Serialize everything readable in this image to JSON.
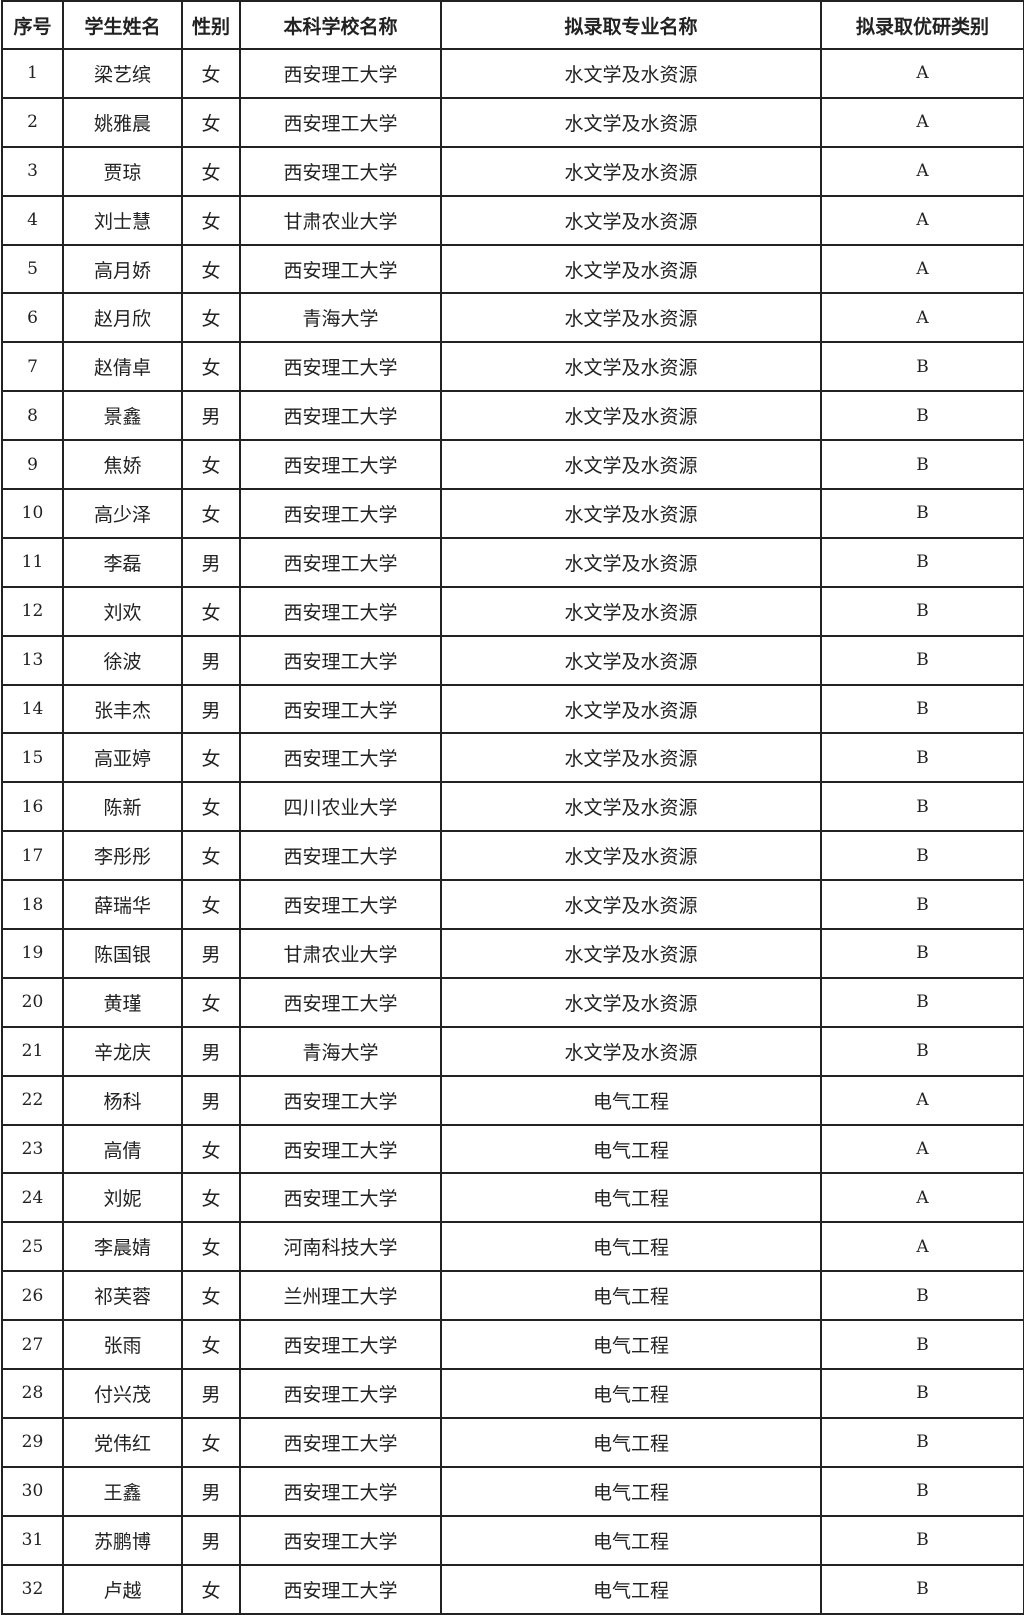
{
  "headers": [
    "序号",
    "学生姓名",
    "性别",
    "本科学校名称",
    "拟录取专业名称",
    "拟录取优研类别"
  ],
  "rows": [
    [
      "1",
      "梁艺缤",
      "女",
      "西安理工大学",
      "水文学及水资源",
      "A"
    ],
    [
      "2",
      "姚雅晨",
      "女",
      "西安理工大学",
      "水文学及水资源",
      "A"
    ],
    [
      "3",
      "贾琼",
      "女",
      "西安理工大学",
      "水文学及水资源",
      "A"
    ],
    [
      "4",
      "刘士慧",
      "女",
      "甘肃农业大学",
      "水文学及水资源",
      "A"
    ],
    [
      "5",
      "高月娇",
      "女",
      "西安理工大学",
      "水文学及水资源",
      "A"
    ],
    [
      "6",
      "赵月欣",
      "女",
      "青海大学",
      "水文学及水资源",
      "A"
    ],
    [
      "7",
      "赵倩卓",
      "女",
      "西安理工大学",
      "水文学及水资源",
      "B"
    ],
    [
      "8",
      "景鑫",
      "男",
      "西安理工大学",
      "水文学及水资源",
      "B"
    ],
    [
      "9",
      "焦娇",
      "女",
      "西安理工大学",
      "水文学及水资源",
      "B"
    ],
    [
      "10",
      "高少泽",
      "女",
      "西安理工大学",
      "水文学及水资源",
      "B"
    ],
    [
      "11",
      "李磊",
      "男",
      "西安理工大学",
      "水文学及水资源",
      "B"
    ],
    [
      "12",
      "刘欢",
      "女",
      "西安理工大学",
      "水文学及水资源",
      "B"
    ],
    [
      "13",
      "徐波",
      "男",
      "西安理工大学",
      "水文学及水资源",
      "B"
    ],
    [
      "14",
      "张丰杰",
      "男",
      "西安理工大学",
      "水文学及水资源",
      "B"
    ],
    [
      "15",
      "高亚婷",
      "女",
      "西安理工大学",
      "水文学及水资源",
      "B"
    ],
    [
      "16",
      "陈新",
      "女",
      "四川农业大学",
      "水文学及水资源",
      "B"
    ],
    [
      "17",
      "李彤彤",
      "女",
      "西安理工大学",
      "水文学及水资源",
      "B"
    ],
    [
      "18",
      "薛瑞华",
      "女",
      "西安理工大学",
      "水文学及水资源",
      "B"
    ],
    [
      "19",
      "陈国银",
      "男",
      "甘肃农业大学",
      "水文学及水资源",
      "B"
    ],
    [
      "20",
      "黄瑾",
      "女",
      "西安理工大学",
      "水文学及水资源",
      "B"
    ],
    [
      "21",
      "辛龙庆",
      "男",
      "青海大学",
      "水文学及水资源",
      "B"
    ],
    [
      "22",
      "杨科",
      "男",
      "西安理工大学",
      "电气工程",
      "A"
    ],
    [
      "23",
      "高倩",
      "女",
      "西安理工大学",
      "电气工程",
      "A"
    ],
    [
      "24",
      "刘妮",
      "女",
      "西安理工大学",
      "电气工程",
      "A"
    ],
    [
      "25",
      "李晨婧",
      "女",
      "河南科技大学",
      "电气工程",
      "A"
    ],
    [
      "26",
      "祁芙蓉",
      "女",
      "兰州理工大学",
      "电气工程",
      "B"
    ],
    [
      "27",
      "张雨",
      "女",
      "西安理工大学",
      "电气工程",
      "B"
    ],
    [
      "28",
      "付兴茂",
      "男",
      "西安理工大学",
      "电气工程",
      "B"
    ],
    [
      "29",
      "党伟红",
      "女",
      "西安理工大学",
      "电气工程",
      "B"
    ],
    [
      "30",
      "王鑫",
      "男",
      "西安理工大学",
      "电气工程",
      "B"
    ],
    [
      "31",
      "苏鹏博",
      "男",
      "西安理工大学",
      "电气工程",
      "B"
    ],
    [
      "32",
      "卢越",
      "女",
      "西安理工大学",
      "电气工程",
      "B"
    ]
  ]
}
